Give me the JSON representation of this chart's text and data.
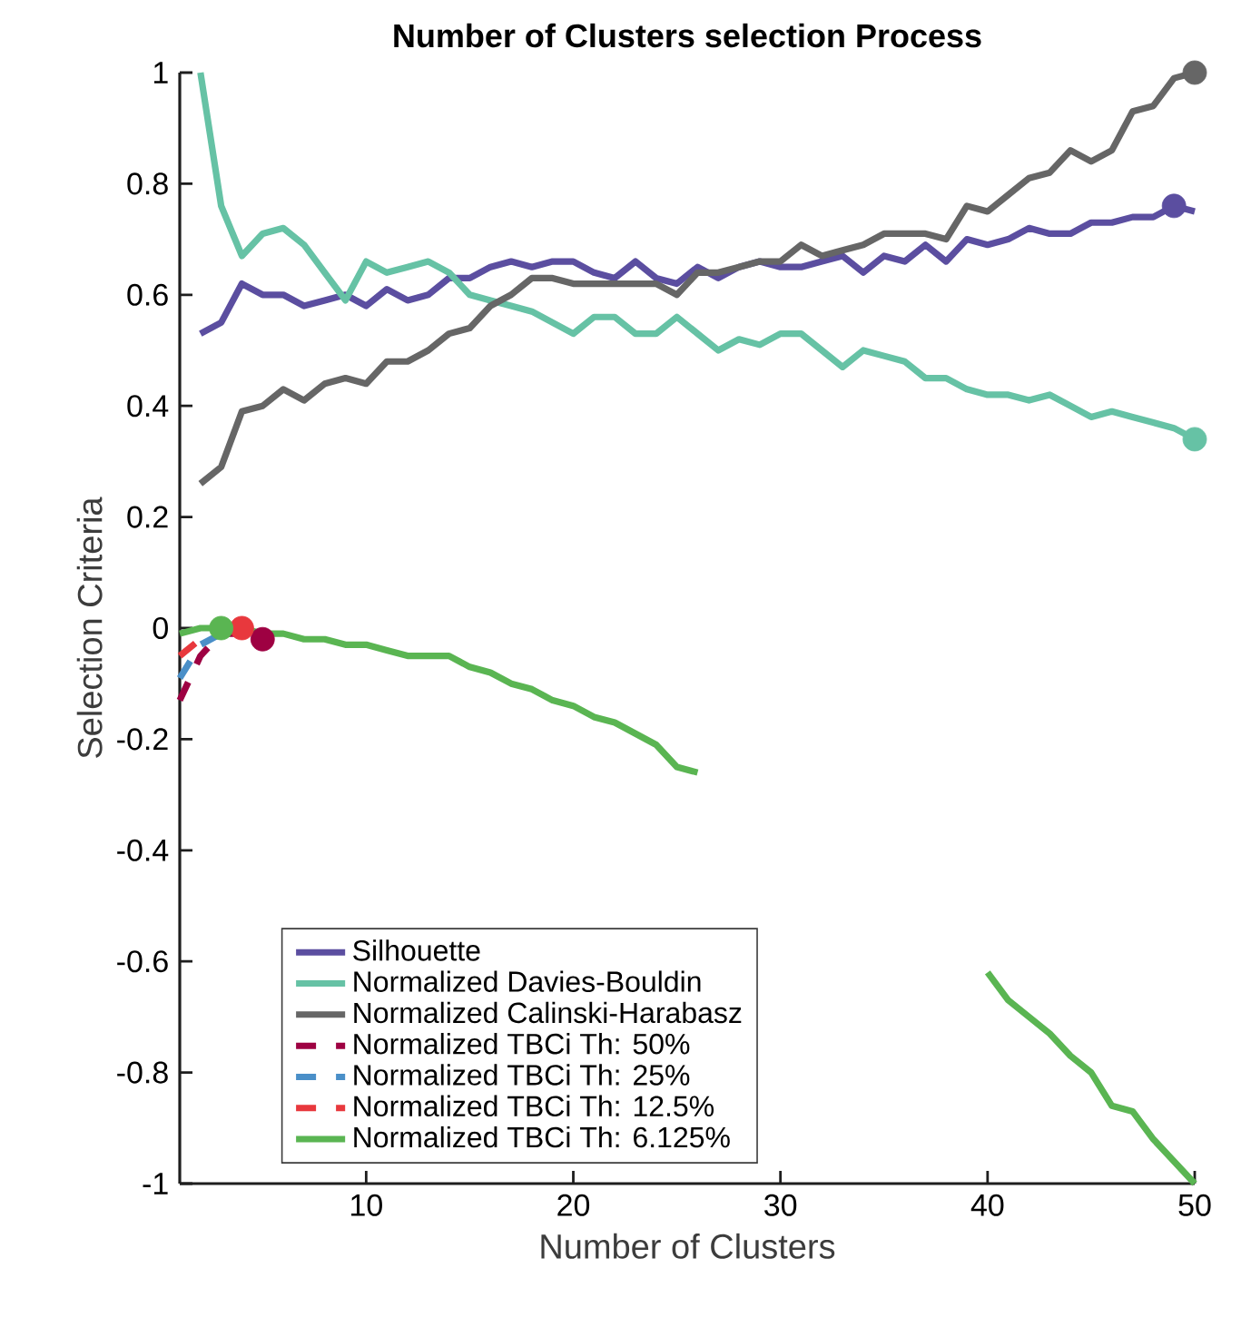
{
  "chart_data": {
    "type": "line",
    "title": "Number of Clusters selection Process",
    "xlabel": "Number of Clusters",
    "ylabel": "Selection Criteria",
    "x": [
      1,
      2,
      3,
      4,
      5,
      6,
      7,
      8,
      9,
      10,
      11,
      12,
      13,
      14,
      15,
      16,
      17,
      18,
      19,
      20,
      21,
      22,
      23,
      24,
      25,
      26,
      27,
      28,
      29,
      30,
      31,
      32,
      33,
      34,
      35,
      36,
      37,
      38,
      39,
      40,
      41,
      42,
      43,
      44,
      45,
      46,
      47,
      48,
      49,
      50
    ],
    "xlim": [
      1,
      50
    ],
    "xticks": [
      10,
      20,
      30,
      40,
      50
    ],
    "ylim": [
      -1,
      1
    ],
    "yticks": [
      -1,
      -0.8,
      -0.6,
      -0.4,
      -0.2,
      0,
      0.2,
      0.4,
      0.6,
      0.8,
      1
    ],
    "grid": false,
    "legend": "bottom left",
    "series": [
      {
        "name": "Silhouette",
        "color": "#5b4ea0",
        "line_style": "solid",
        "marker": "none",
        "values": [
          null,
          0.53,
          0.55,
          0.62,
          0.6,
          0.6,
          0.58,
          0.59,
          0.6,
          0.58,
          0.61,
          0.59,
          0.6,
          0.63,
          0.63,
          0.65,
          0.66,
          0.65,
          0.66,
          0.66,
          0.64,
          0.63,
          0.66,
          0.63,
          0.62,
          0.65,
          0.63,
          0.65,
          0.66,
          0.65,
          0.65,
          0.66,
          0.67,
          0.64,
          0.67,
          0.66,
          0.69,
          0.66,
          0.7,
          0.69,
          0.7,
          0.72,
          0.71,
          0.71,
          0.73,
          0.73,
          0.74,
          0.74,
          0.76,
          0.75
        ]
      },
      {
        "name": "Normalized Davies-Bouldin",
        "color": "#66c2a5",
        "line_style": "solid",
        "marker": "none",
        "values": [
          null,
          1,
          0.76,
          0.67,
          0.71,
          0.72,
          0.69,
          0.64,
          0.59,
          0.66,
          0.64,
          0.65,
          0.66,
          0.64,
          0.6,
          0.59,
          0.58,
          0.57,
          0.55,
          0.53,
          0.56,
          0.56,
          0.53,
          0.53,
          0.56,
          0.53,
          0.5,
          0.52,
          0.51,
          0.53,
          0.53,
          0.5,
          0.47,
          0.5,
          0.49,
          0.48,
          0.45,
          0.45,
          0.43,
          0.42,
          0.42,
          0.41,
          0.42,
          0.4,
          0.38,
          0.39,
          0.38,
          0.37,
          0.36,
          0.34
        ]
      },
      {
        "name": "Normalized Calinski-Harabasz",
        "color": "#666666",
        "line_style": "solid",
        "marker": "none",
        "values": [
          null,
          0.26,
          0.29,
          0.39,
          0.4,
          0.43,
          0.41,
          0.44,
          0.45,
          0.44,
          0.48,
          0.48,
          0.5,
          0.53,
          0.54,
          0.58,
          0.6,
          0.63,
          0.63,
          0.62,
          0.62,
          0.62,
          0.62,
          0.62,
          0.6,
          0.64,
          0.64,
          0.65,
          0.66,
          0.66,
          0.69,
          0.67,
          0.68,
          0.69,
          0.71,
          0.71,
          0.71,
          0.7,
          0.76,
          0.75,
          0.78,
          0.81,
          0.82,
          0.86,
          0.84,
          0.86,
          0.93,
          0.94,
          0.99,
          1
        ]
      },
      {
        "name": "Normalized TBCi Th: 50%",
        "color": "#9e0142",
        "line_style": "dashed",
        "marker": "none",
        "values": [
          -0.13,
          -0.05,
          -0.01,
          -0.01,
          -0.02,
          null,
          null,
          null,
          null,
          null,
          null,
          null,
          null,
          null,
          null,
          null,
          null,
          null,
          null,
          null,
          null,
          null,
          null,
          null,
          null,
          null,
          null,
          null,
          null,
          null,
          null,
          null,
          null,
          null,
          null,
          null,
          null,
          null,
          null,
          null,
          null,
          null,
          null,
          null,
          null,
          null,
          null,
          null,
          null,
          null
        ]
      },
      {
        "name": "Normalized TBCi Th: 25%",
        "color": "#4a8fc8",
        "line_style": "dashed",
        "marker": "none",
        "values": [
          -0.09,
          -0.03,
          -0.01,
          0,
          null,
          null,
          null,
          null,
          null,
          null,
          null,
          null,
          null,
          null,
          null,
          null,
          null,
          null,
          null,
          null,
          null,
          null,
          null,
          null,
          null,
          null,
          null,
          null,
          null,
          null,
          null,
          null,
          null,
          null,
          null,
          null,
          null,
          null,
          null,
          null,
          null,
          null,
          null,
          null,
          null,
          null,
          null,
          null,
          null,
          null
        ]
      },
      {
        "name": "Normalized TBCi Th: 12.5%",
        "color": "#e8383d",
        "line_style": "dashed",
        "marker": "none",
        "values": [
          -0.05,
          -0.02,
          0,
          0,
          null,
          null,
          null,
          null,
          null,
          null,
          null,
          null,
          null,
          null,
          null,
          null,
          null,
          null,
          null,
          null,
          null,
          null,
          null,
          null,
          null,
          null,
          null,
          null,
          null,
          null,
          null,
          null,
          null,
          null,
          null,
          null,
          null,
          null,
          null,
          null,
          null,
          null,
          null,
          null,
          null,
          null,
          null,
          null,
          null,
          null
        ]
      },
      {
        "name": "Normalized TBCi Th: 6.125%",
        "color": "#5ab552",
        "line_style": "solid",
        "marker": "none",
        "values": [
          -0.01,
          0,
          0,
          0,
          -0.01,
          -0.01,
          -0.02,
          -0.02,
          -0.03,
          -0.03,
          -0.04,
          -0.05,
          -0.05,
          -0.05,
          -0.07,
          -0.08,
          -0.1,
          -0.11,
          -0.13,
          -0.14,
          -0.16,
          -0.17,
          -0.19,
          -0.21,
          -0.25,
          -0.26,
          null,
          null,
          null,
          null,
          null,
          null,
          null,
          null,
          null,
          null,
          null,
          null,
          null,
          -0.62,
          -0.67,
          -0.7,
          -0.73,
          -0.77,
          -0.8,
          -0.86,
          -0.87,
          -0.92,
          -0.96,
          -1
        ]
      },
      {
        "type": "scatter",
        "color": "#5b4ea0",
        "marker": "circle",
        "x": [
          49
        ],
        "values": [
          0.76
        ]
      },
      {
        "type": "scatter",
        "color": "#66c2a5",
        "marker": "circle",
        "x": [
          50
        ],
        "values": [
          0.34
        ]
      },
      {
        "type": "scatter",
        "color": "#666666",
        "marker": "circle",
        "x": [
          50
        ],
        "values": [
          1
        ]
      },
      {
        "type": "scatter",
        "color": "#9e0142",
        "marker": "circle",
        "x": [
          5
        ],
        "values": [
          -0.02
        ]
      },
      {
        "type": "scatter",
        "color": "#e8383d",
        "marker": "circle",
        "x": [
          4
        ],
        "values": [
          0
        ]
      },
      {
        "type": "scatter",
        "color": "#5ab552",
        "marker": "circle",
        "x": [
          3
        ],
        "values": [
          0
        ]
      }
    ]
  }
}
